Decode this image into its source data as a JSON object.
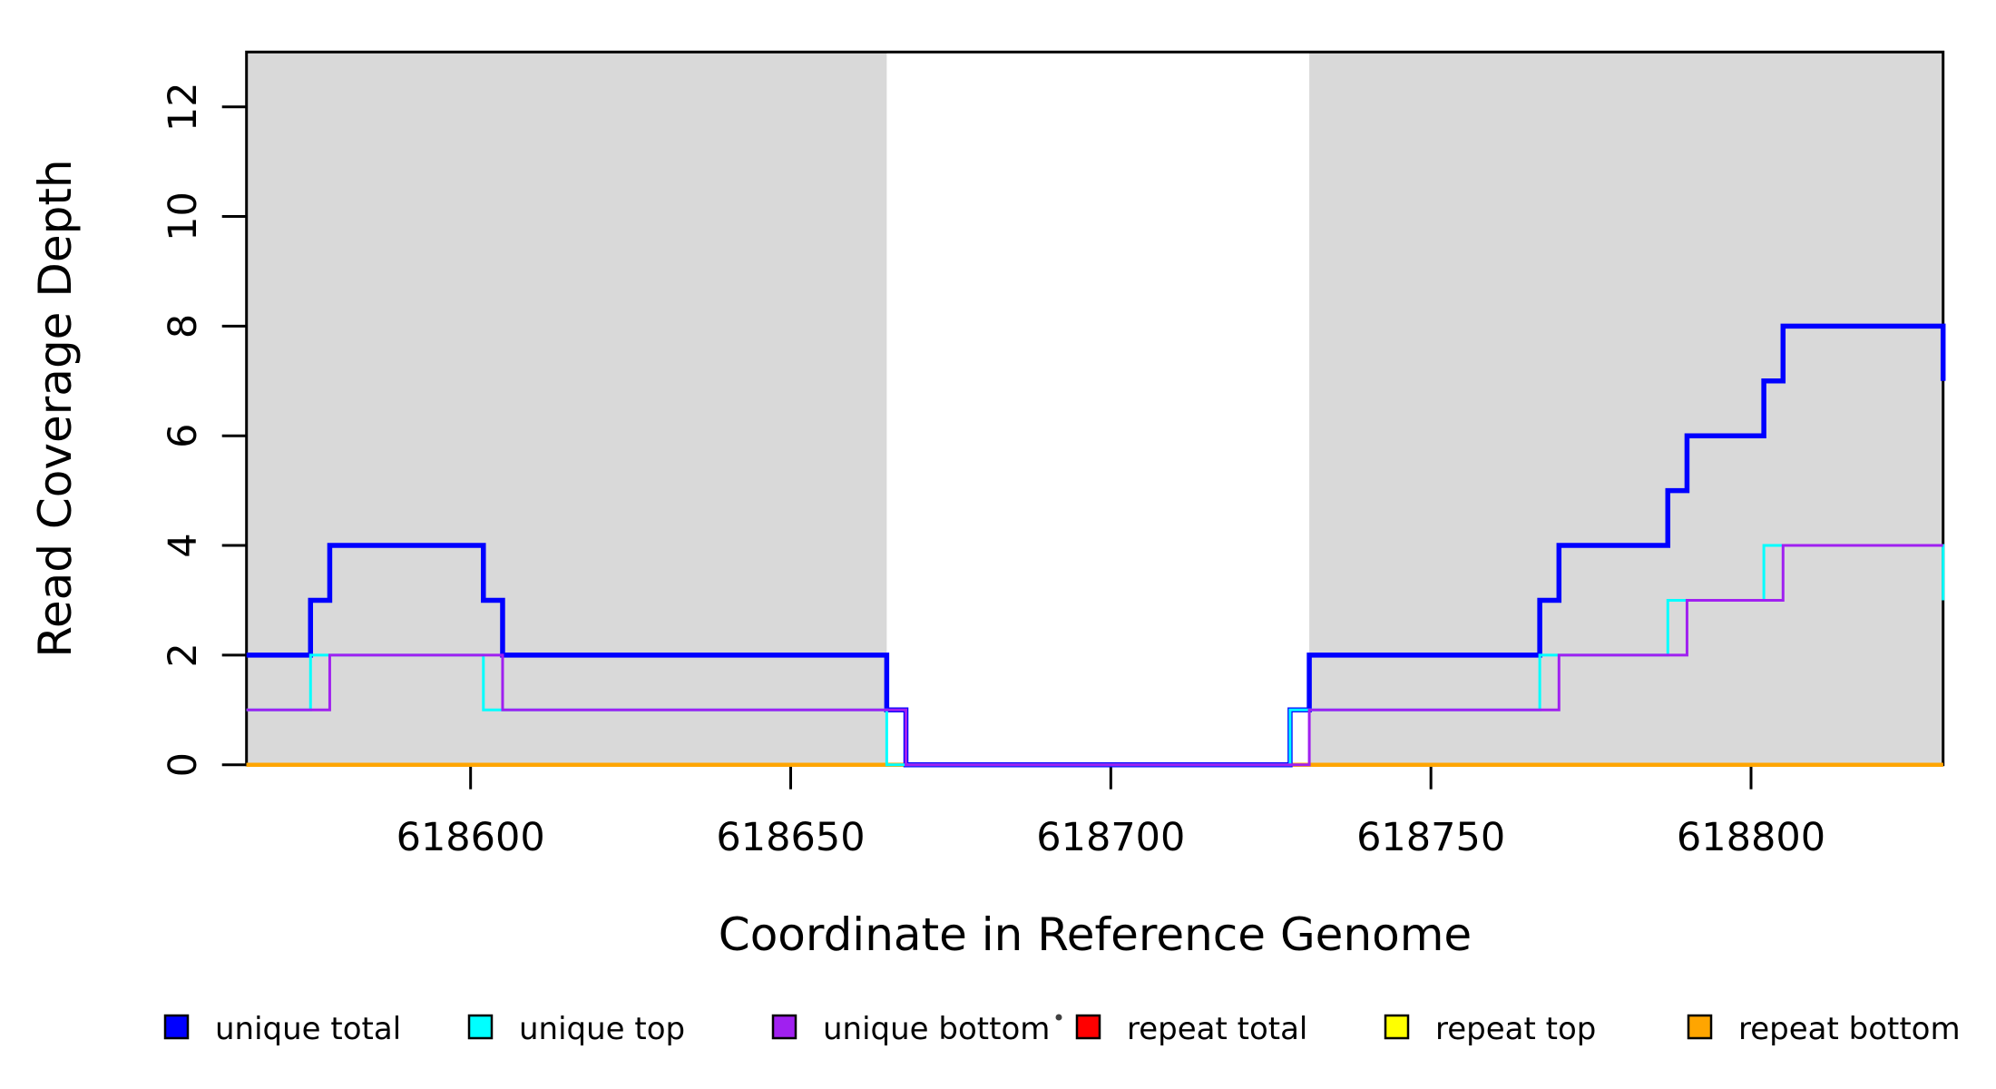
{
  "chart_data": {
    "type": "line",
    "step": "after",
    "title": "",
    "xlabel": "Coordinate in Reference Genome",
    "ylabel": "Read Coverage Depth",
    "xlim": [
      618565,
      618830
    ],
    "ylim": [
      0,
      13
    ],
    "x_ticks": [
      618600,
      618650,
      618700,
      618750,
      618800
    ],
    "y_ticks": [
      0,
      2,
      4,
      6,
      8,
      10,
      12
    ],
    "grid": false,
    "background_shading": {
      "color": "#d9d9d9",
      "regions": [
        {
          "from": 618565,
          "to": 618665
        },
        {
          "from": 618731,
          "to": 618830
        }
      ]
    },
    "series": [
      {
        "name": "repeat total",
        "color": "#ff0000",
        "width": 4.5,
        "points": [
          [
            618565,
            0
          ],
          [
            618830,
            0
          ]
        ]
      },
      {
        "name": "repeat top",
        "color": "#ffff00",
        "width": 4.5,
        "points": [
          [
            618565,
            0
          ],
          [
            618830,
            0
          ]
        ]
      },
      {
        "name": "repeat bottom",
        "color": "#ffa500",
        "width": 4.5,
        "points": [
          [
            618565,
            0
          ],
          [
            618830,
            0
          ]
        ]
      },
      {
        "name": "unique total",
        "color": "#0000ff",
        "width": 5.5,
        "points": [
          [
            618565,
            2
          ],
          [
            618575,
            3
          ],
          [
            618578,
            4
          ],
          [
            618602,
            3
          ],
          [
            618605,
            2
          ],
          [
            618665,
            1
          ],
          [
            618668,
            0
          ],
          [
            618728,
            1
          ],
          [
            618731,
            2
          ],
          [
            618767,
            3
          ],
          [
            618770,
            4
          ],
          [
            618787,
            5
          ],
          [
            618790,
            6
          ],
          [
            618802,
            7
          ],
          [
            618805,
            8
          ],
          [
            618830,
            7
          ]
        ]
      },
      {
        "name": "unique top",
        "color": "#00ffff",
        "width": 3,
        "points": [
          [
            618565,
            1
          ],
          [
            618575,
            2
          ],
          [
            618602,
            1
          ],
          [
            618665,
            0
          ],
          [
            618728,
            1
          ],
          [
            618767,
            2
          ],
          [
            618787,
            3
          ],
          [
            618802,
            4
          ],
          [
            618830,
            3
          ]
        ]
      },
      {
        "name": "unique bottom",
        "color": "#a020f0",
        "width": 3,
        "points": [
          [
            618565,
            1
          ],
          [
            618578,
            2
          ],
          [
            618605,
            1
          ],
          [
            618668,
            0
          ],
          [
            618731,
            1
          ],
          [
            618770,
            2
          ],
          [
            618790,
            3
          ],
          [
            618805,
            4
          ],
          [
            618830,
            4
          ]
        ]
      }
    ],
    "legend": {
      "position": "bottom",
      "items": [
        {
          "label": "unique total",
          "color": "#0000ff"
        },
        {
          "label": "unique top",
          "color": "#00ffff"
        },
        {
          "label": "unique bottom",
          "color": "#a020f0"
        },
        {
          "label": "repeat total",
          "color": "#ff0000"
        },
        {
          "label": "repeat top",
          "color": "#ffff00"
        },
        {
          "label": "repeat bottom",
          "color": "#ffa500"
        }
      ]
    },
    "stray_mark": {
      "x": 1167,
      "y": 1121
    }
  }
}
